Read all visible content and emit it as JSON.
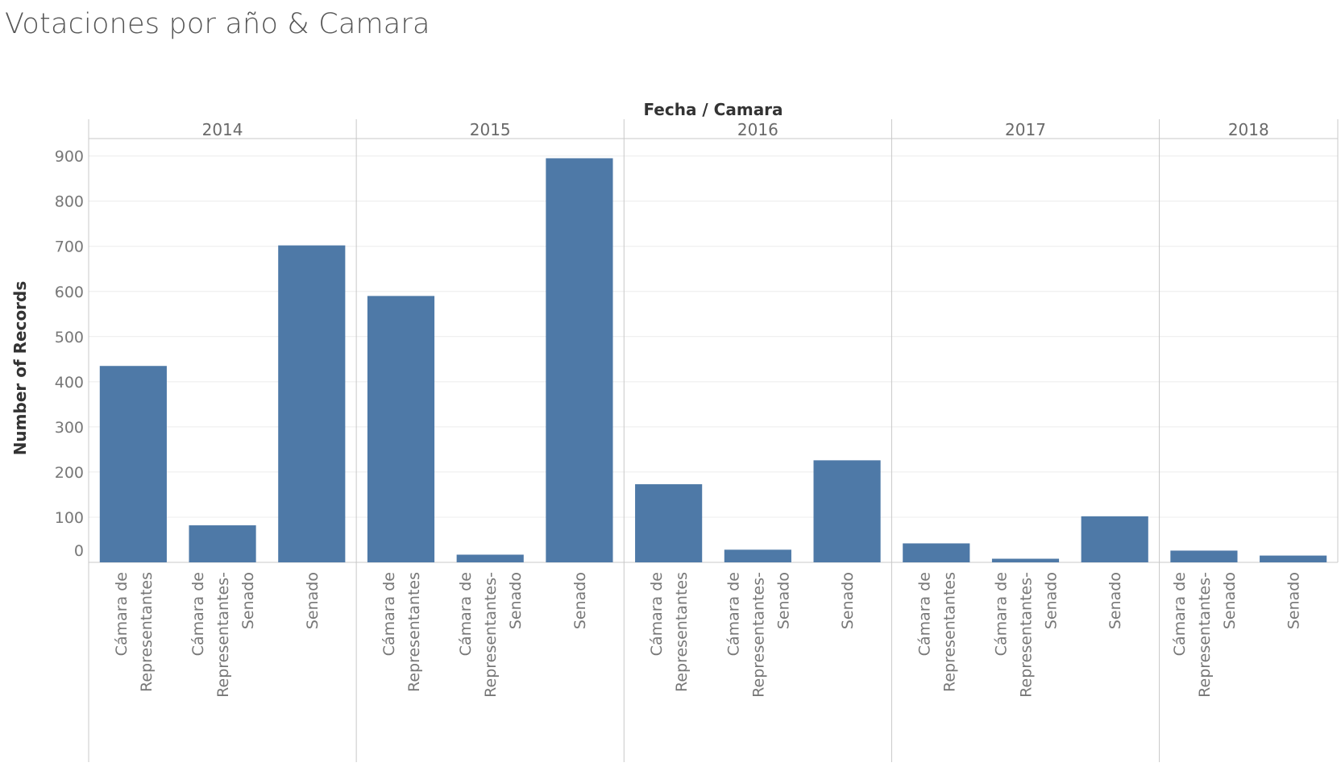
{
  "chart_data": {
    "type": "bar",
    "title": "Votaciones por año & Camara",
    "column_header": "Fecha / Camara",
    "ylabel": "Number of Records",
    "ylim": [
      0,
      900
    ],
    "yticks": [
      0,
      100,
      200,
      300,
      400,
      500,
      600,
      700,
      800,
      900
    ],
    "grid": true,
    "bar_color": "#4e79a7",
    "groups": [
      {
        "year": "2014",
        "bars": [
          {
            "category": "Cámara de Representantes",
            "label_lines": [
              "Cámara de",
              "Representantes"
            ],
            "value": 435
          },
          {
            "category": "Cámara de Representantes-Senado",
            "label_lines": [
              "Cámara de",
              "Representantes-",
              "Senado"
            ],
            "value": 82
          },
          {
            "category": "Senado",
            "label_lines": [
              "Senado"
            ],
            "value": 702
          }
        ]
      },
      {
        "year": "2015",
        "bars": [
          {
            "category": "Cámara de Representantes",
            "label_lines": [
              "Cámara de",
              "Representantes"
            ],
            "value": 590
          },
          {
            "category": "Cámara de Representantes-Senado",
            "label_lines": [
              "Cámara de",
              "Representantes-",
              "Senado"
            ],
            "value": 17
          },
          {
            "category": "Senado",
            "label_lines": [
              "Senado"
            ],
            "value": 895
          }
        ]
      },
      {
        "year": "2016",
        "bars": [
          {
            "category": "Cámara de Representantes",
            "label_lines": [
              "Cámara de",
              "Representantes"
            ],
            "value": 173
          },
          {
            "category": "Cámara de Representantes-Senado",
            "label_lines": [
              "Cámara de",
              "Representantes-",
              "Senado"
            ],
            "value": 28
          },
          {
            "category": "Senado",
            "label_lines": [
              "Senado"
            ],
            "value": 226
          }
        ]
      },
      {
        "year": "2017",
        "bars": [
          {
            "category": "Cámara de Representantes",
            "label_lines": [
              "Cámara de",
              "Representantes"
            ],
            "value": 42
          },
          {
            "category": "Cámara de Representantes-Senado",
            "label_lines": [
              "Cámara de",
              "Representantes-",
              "Senado"
            ],
            "value": 8
          },
          {
            "category": "Senado",
            "label_lines": [
              "Senado"
            ],
            "value": 102
          }
        ]
      },
      {
        "year": "2018",
        "bars": [
          {
            "category": "Cámara de Representantes-Senado",
            "label_lines": [
              "Cámara de",
              "Representantes-",
              "Senado"
            ],
            "value": 26
          },
          {
            "category": "Senado",
            "label_lines": [
              "Senado"
            ],
            "value": 15
          }
        ]
      }
    ]
  }
}
